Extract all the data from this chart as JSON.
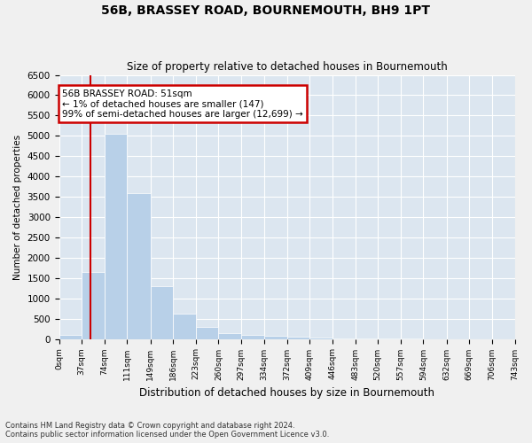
{
  "title": "56B, BRASSEY ROAD, BOURNEMOUTH, BH9 1PT",
  "subtitle": "Size of property relative to detached houses in Bournemouth",
  "xlabel": "Distribution of detached houses by size in Bournemouth",
  "ylabel": "Number of detached properties",
  "bar_color": "#b8d0e8",
  "background_color": "#dce6f0",
  "grid_color": "#ffffff",
  "annotation_box_color": "#ffffff",
  "annotation_border_color": "#cc0000",
  "vline_color": "#cc0000",
  "vline_x": 51,
  "annotation_text": "56B BRASSEY ROAD: 51sqm\n← 1% of detached houses are smaller (147)\n99% of semi-detached houses are larger (12,699) →",
  "footnote1": "Contains HM Land Registry data © Crown copyright and database right 2024.",
  "footnote2": "Contains public sector information licensed under the Open Government Licence v3.0.",
  "bin_edges": [
    0,
    37,
    74,
    111,
    149,
    186,
    223,
    260,
    297,
    334,
    372,
    409,
    446,
    483,
    520,
    557,
    594,
    632,
    669,
    706,
    743
  ],
  "bar_heights": [
    100,
    1650,
    5050,
    3600,
    1300,
    620,
    300,
    150,
    100,
    80,
    50,
    30,
    10,
    5,
    3,
    2,
    1,
    1,
    1,
    0
  ],
  "ylim": [
    0,
    6500
  ],
  "yticks": [
    0,
    500,
    1000,
    1500,
    2000,
    2500,
    3000,
    3500,
    4000,
    4500,
    5000,
    5500,
    6000,
    6500
  ],
  "figsize": [
    6.0,
    5.0
  ],
  "dpi": 100
}
